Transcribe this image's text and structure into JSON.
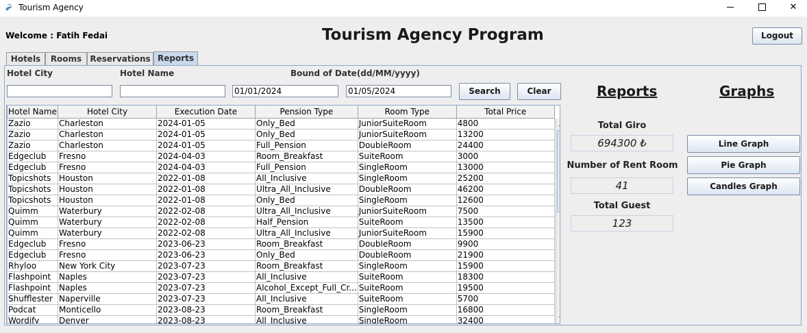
{
  "window": {
    "title": "Tourism Agency"
  },
  "header": {
    "welcome": "Welcome : Fatih Fedai",
    "title": "Tourism Agency Program",
    "logout": "Logout"
  },
  "tabs": [
    "Hotels",
    "Rooms",
    "Reservations",
    "Reports"
  ],
  "filters": {
    "city_label": "Hotel City",
    "name_label": "Hotel Name",
    "date_label": "Bound of Date(dd/MM/yyyy)",
    "city_value": "",
    "name_value": "",
    "date_from": "01/01/2024",
    "date_to": "01/05/2024",
    "search": "Search",
    "clear": "Clear"
  },
  "table": {
    "columns": [
      "Hotel Name",
      "Hotel City",
      "Execution Date",
      "Pension Type",
      "Room Type",
      "Total Price"
    ],
    "rows": [
      [
        "Zazio",
        "Charleston",
        "2024-01-05",
        "Only_Bed",
        "JuniorSuiteRoom",
        "4800"
      ],
      [
        "Zazio",
        "Charleston",
        "2024-01-05",
        "Only_Bed",
        "JuniorSuiteRoom",
        "13200"
      ],
      [
        "Zazio",
        "Charleston",
        "2024-01-05",
        "Full_Pension",
        "DoubleRoom",
        "24400"
      ],
      [
        "Edgeclub",
        "Fresno",
        "2024-04-03",
        "Room_Breakfast",
        "SuiteRoom",
        "3000"
      ],
      [
        "Edgeclub",
        "Fresno",
        "2024-04-03",
        "Full_Pension",
        "SingleRoom",
        "13000"
      ],
      [
        "Topicshots",
        "Houston",
        "2022-01-08",
        "All_Inclusive",
        "SingleRoom",
        "25200"
      ],
      [
        "Topicshots",
        "Houston",
        "2022-01-08",
        "Ultra_All_Inclusive",
        "DoubleRoom",
        "46200"
      ],
      [
        "Topicshots",
        "Houston",
        "2022-01-08",
        "Only_Bed",
        "SingleRoom",
        "12600"
      ],
      [
        "Quimm",
        "Waterbury",
        "2022-02-08",
        "Ultra_All_Inclusive",
        "JuniorSuiteRoom",
        "7500"
      ],
      [
        "Quimm",
        "Waterbury",
        "2022-02-08",
        "Half_Pension",
        "SuiteRoom",
        "13500"
      ],
      [
        "Quimm",
        "Waterbury",
        "2022-02-08",
        "Ultra_All_Inclusive",
        "JuniorSuiteRoom",
        "15900"
      ],
      [
        "Edgeclub",
        "Fresno",
        "2023-06-23",
        "Room_Breakfast",
        "DoubleRoom",
        "9900"
      ],
      [
        "Edgeclub",
        "Fresno",
        "2023-06-23",
        "Only_Bed",
        "DoubleRoom",
        "21900"
      ],
      [
        "Rhyloo",
        "New York City",
        "2023-07-23",
        "Room_Breakfast",
        "SingleRoom",
        "15900"
      ],
      [
        "Flashpoint",
        "Naples",
        "2023-07-23",
        "All_Inclusive",
        "SuiteRoom",
        "18300"
      ],
      [
        "Flashpoint",
        "Naples",
        "2023-07-23",
        "Alcohol_Except_Full_Cr...",
        "SuiteRoom",
        "19500"
      ],
      [
        "Shufflester",
        "Naperville",
        "2023-07-23",
        "All_Inclusive",
        "SuiteRoom",
        "5700"
      ],
      [
        "Podcat",
        "Monticello",
        "2023-08-23",
        "Room_Breakfast",
        "SingleRoom",
        "16800"
      ],
      [
        "Wordify",
        "Denver",
        "2023-08-23",
        "All_Inclusive",
        "SingleRoom",
        "32400"
      ]
    ]
  },
  "reports": {
    "title": "Reports",
    "total_giro_label": "Total Giro",
    "total_giro": "694300 ₺",
    "rent_room_label": "Number of Rent Room",
    "rent_room": "41",
    "guest_label": "Total Guest",
    "guest": "123"
  },
  "graphs": {
    "title": "Graphs",
    "line": "Line Graph",
    "pie": "Pie Graph",
    "candles": "Candles Graph"
  }
}
